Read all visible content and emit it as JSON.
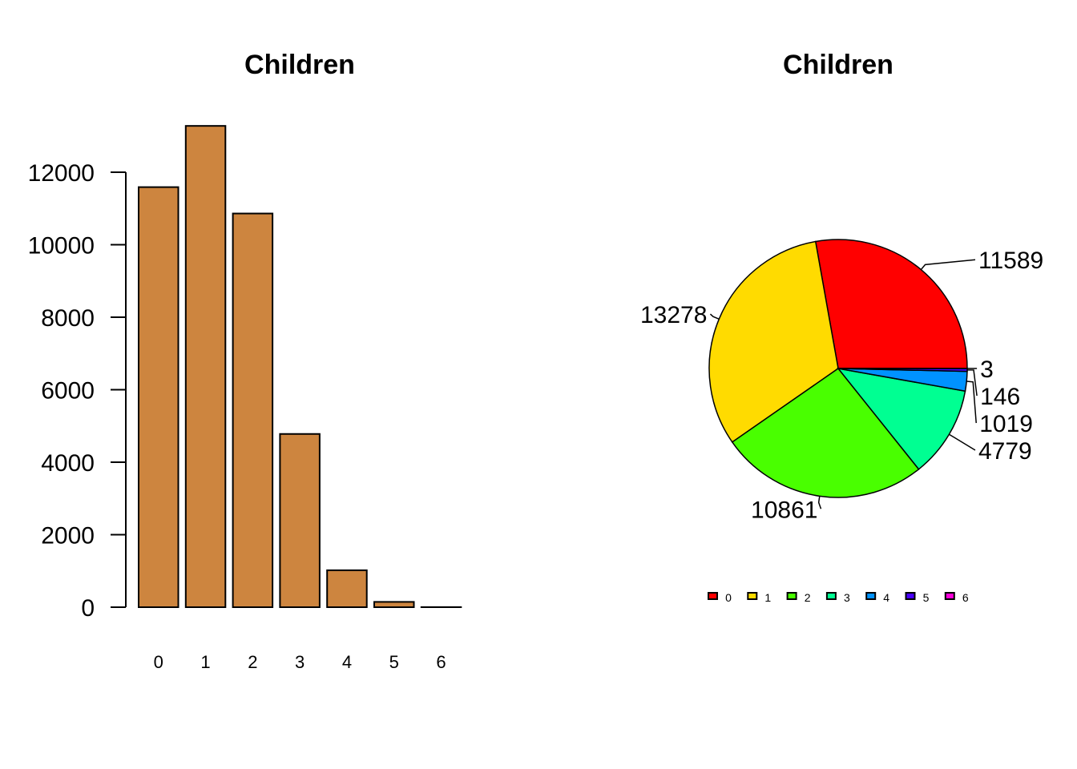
{
  "chart_data": [
    {
      "type": "bar",
      "title": "Children",
      "categories": [
        "0",
        "1",
        "2",
        "3",
        "4",
        "5",
        "6"
      ],
      "values": [
        11589,
        13278,
        10861,
        4779,
        1019,
        146,
        3
      ],
      "ylim": [
        0,
        13278
      ],
      "yticks": [
        0,
        2000,
        4000,
        6000,
        8000,
        10000,
        12000
      ],
      "bar_color": "#CD853F",
      "xlabel": "",
      "ylabel": ""
    },
    {
      "type": "pie",
      "title": "Children",
      "categories": [
        "0",
        "1",
        "2",
        "3",
        "4",
        "5",
        "6"
      ],
      "values": [
        11589,
        13278,
        10861,
        4779,
        1019,
        146,
        3
      ],
      "labels": [
        "11589",
        "13278",
        "10861",
        "4779",
        "1019",
        "146",
        "3"
      ],
      "colors": [
        "#FF0000",
        "#FFDB00",
        "#49FF00",
        "#00FF92",
        "#0092FF",
        "#4900FF",
        "#FF00DB"
      ],
      "legend": {
        "placement": "bottom",
        "entries": [
          "0",
          "1",
          "2",
          "3",
          "4",
          "5",
          "6"
        ]
      }
    }
  ]
}
